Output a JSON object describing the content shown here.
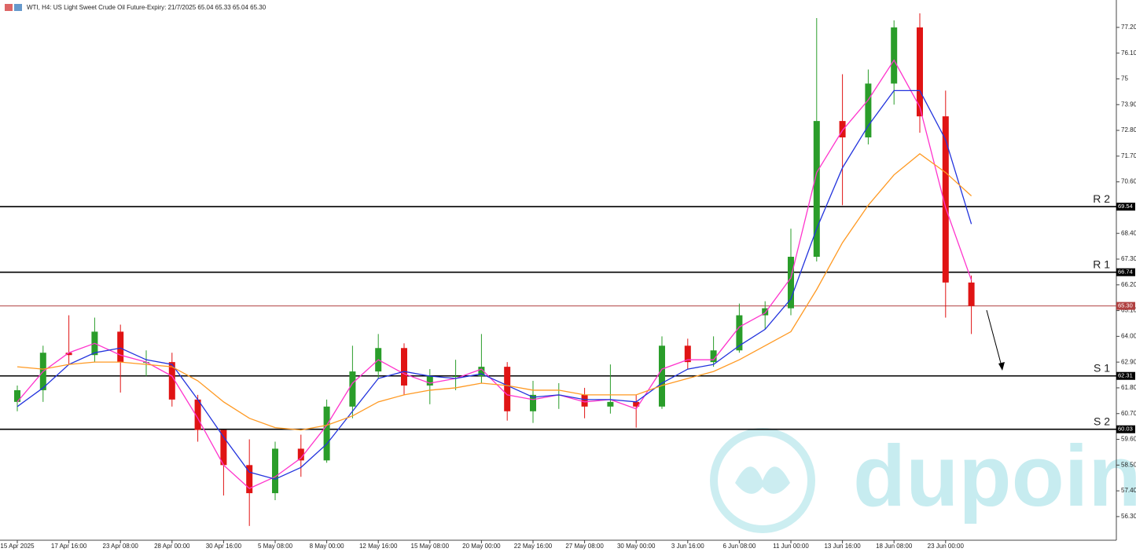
{
  "chart_data": {
    "type": "candlestick",
    "title": "WTI, H4:  US Light Sweet Crude Oil Future-Expiry: 21/7/2025  65.04 65.33 65.04 65.30",
    "watermark": "dupoin",
    "categories": [
      "15 Apr 2025",
      null,
      "17 Apr 16:00",
      null,
      "23 Apr 08:00",
      null,
      "28 Apr 00:00",
      null,
      "30 Apr 16:00",
      null,
      "5 May 08:00",
      null,
      "8 May 00:00",
      null,
      "12 May 16:00",
      null,
      "15 May 08:00",
      null,
      "20 May 00:00",
      null,
      "22 May 16:00",
      null,
      "27 May 08:00",
      null,
      "30 May 00:00",
      null,
      "3 Jun 16:00",
      null,
      "6 Jun 08:00",
      null,
      "11 Jun 00:00",
      null,
      "13 Jun 16:00",
      null,
      "18 Jun 08:00",
      null,
      "23 Jun 00:00",
      null
    ],
    "open": [
      61.2,
      61.7,
      63.3,
      63.2,
      64.2,
      62.9,
      62.9,
      61.3,
      60.0,
      58.5,
      57.3,
      59.2,
      58.7,
      61.0,
      62.5,
      63.5,
      61.9,
      62.3,
      62.3,
      62.7,
      60.8,
      61.5,
      61.5,
      61.0,
      61.2,
      61.0,
      63.6,
      62.9,
      63.4,
      64.9,
      65.2,
      67.4,
      73.2,
      72.5,
      74.8,
      77.2,
      73.4,
      66.3
    ],
    "high": [
      61.9,
      63.6,
      64.9,
      64.8,
      64.5,
      63.4,
      63.3,
      61.5,
      60.0,
      59.6,
      59.5,
      59.8,
      61.3,
      63.6,
      64.1,
      63.7,
      62.6,
      63.0,
      64.1,
      62.9,
      62.1,
      62.0,
      61.8,
      62.8,
      61.5,
      64.0,
      63.9,
      64.0,
      65.4,
      65.5,
      68.6,
      77.6,
      75.2,
      75.4,
      77.5,
      77.8,
      74.5,
      66.6
    ],
    "low": [
      60.8,
      61.2,
      62.8,
      62.9,
      61.6,
      62.3,
      61.0,
      59.5,
      57.2,
      55.9,
      57.0,
      58.0,
      58.6,
      60.5,
      62.2,
      61.5,
      61.1,
      61.7,
      62.0,
      60.4,
      60.3,
      60.9,
      60.5,
      60.7,
      60.1,
      60.9,
      62.6,
      62.7,
      63.3,
      64.3,
      64.9,
      67.2,
      69.6,
      72.2,
      73.9,
      72.7,
      64.8,
      64.1
    ],
    "close": [
      61.7,
      63.3,
      63.2,
      64.2,
      62.9,
      62.9,
      61.3,
      60.0,
      58.5,
      57.3,
      59.2,
      58.7,
      61.0,
      62.5,
      63.5,
      61.9,
      62.3,
      62.3,
      62.7,
      60.8,
      61.5,
      61.5,
      61.0,
      61.2,
      61.0,
      63.6,
      62.9,
      63.4,
      64.9,
      65.2,
      67.4,
      73.2,
      72.5,
      74.8,
      77.2,
      73.4,
      66.3,
      65.3
    ],
    "up_color": "#2a9d2a",
    "down_color": "#e01414",
    "series": [
      {
        "color": "#ff33cc",
        "values": [
          61.2,
          62.5,
          63.3,
          63.7,
          63.2,
          62.9,
          62.3,
          60.5,
          58.5,
          57.5,
          58.0,
          58.8,
          60.2,
          62.0,
          63.0,
          62.4,
          62.0,
          62.2,
          62.6,
          61.5,
          61.3,
          61.5,
          61.2,
          61.3,
          60.9,
          62.6,
          63.0,
          63.0,
          64.4,
          65.0,
          66.5,
          71.0,
          72.8,
          74.1,
          75.8,
          73.8,
          69.5,
          66.4
        ]
      },
      {
        "color": "#2233dd",
        "values": [
          61.0,
          61.8,
          62.8,
          63.3,
          63.5,
          63.0,
          62.8,
          61.3,
          59.7,
          58.2,
          57.9,
          58.4,
          59.4,
          60.8,
          62.2,
          62.5,
          62.3,
          62.2,
          62.4,
          61.9,
          61.4,
          61.5,
          61.3,
          61.3,
          61.2,
          62.0,
          62.6,
          62.8,
          63.6,
          64.3,
          65.6,
          68.6,
          71.2,
          73.0,
          74.5,
          74.5,
          72.4,
          68.8
        ]
      },
      {
        "color": "#ff9922",
        "values": [
          62.7,
          62.6,
          62.8,
          62.9,
          62.9,
          62.8,
          62.7,
          62.1,
          61.2,
          60.5,
          60.1,
          60.0,
          60.2,
          60.6,
          61.2,
          61.5,
          61.7,
          61.8,
          62.0,
          61.9,
          61.7,
          61.7,
          61.5,
          61.5,
          61.5,
          61.9,
          62.2,
          62.5,
          63.0,
          63.6,
          64.2,
          66.0,
          68.0,
          69.6,
          70.9,
          71.8,
          71.0,
          70.0
        ]
      }
    ],
    "levels": [
      {
        "name": "R 2",
        "price": 69.54,
        "color": "#000000"
      },
      {
        "name": "R 1",
        "price": 66.74,
        "color": "#000000"
      },
      {
        "price": {
          "value": 65.3,
          "label": "65.30"
        },
        "color": "#b04040"
      },
      {
        "name": "S 1",
        "price": 62.31,
        "color": "#000000"
      },
      {
        "name": "S 2",
        "price": 60.03,
        "color": "#000000"
      }
    ],
    "ylim": [
      55.29,
      78.37
    ],
    "yticks": [
      {
        "value": 77.2,
        "label": "77.20"
      },
      {
        "value": 76.1,
        "label": "76.10"
      },
      75.0,
      {
        "value": 73.9,
        "label": "73.90"
      },
      {
        "value": 72.8,
        "label": "72.80"
      },
      {
        "value": 71.7,
        "label": "71.70"
      },
      {
        "value": 70.6,
        "label": "70.60"
      },
      {
        "value": 68.4,
        "label": "68.40"
      },
      {
        "value": 67.3,
        "label": "67.30"
      },
      {
        "value": 66.2,
        "label": "66.20"
      },
      {
        "value": 65.1,
        "label": "65.10"
      },
      {
        "value": 64.0,
        "label": "64.00"
      },
      {
        "value": 62.9,
        "label": "62.90"
      },
      {
        "value": 61.8,
        "label": "61.80"
      },
      {
        "value": 60.7,
        "label": "60.70"
      },
      {
        "value": 59.6,
        "label": "59.60"
      },
      {
        "value": 58.5,
        "label": "58.50"
      },
      {
        "value": 57.4,
        "label": "57.40"
      },
      {
        "value": 56.3,
        "label": "56.30"
      }
    ]
  }
}
